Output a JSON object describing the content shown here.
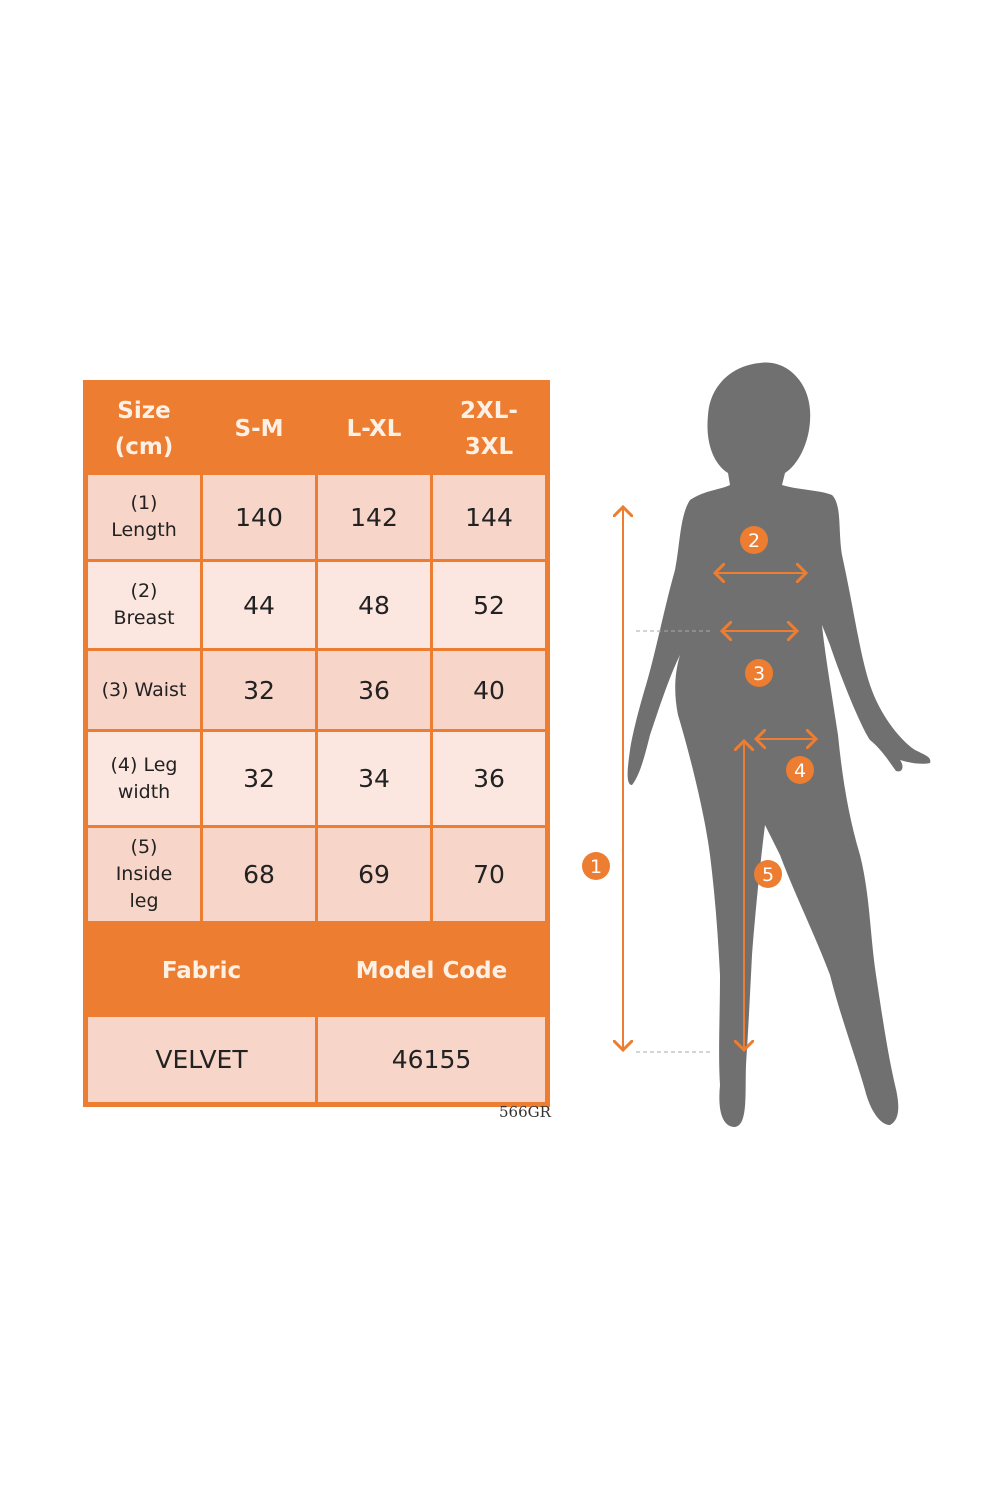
{
  "size_table": {
    "header": [
      "Size (cm)",
      "S-M",
      "L-XL",
      "2XL-3XL"
    ],
    "header_lines": [
      [
        "Size",
        "(cm)"
      ],
      [
        "S-M"
      ],
      [
        "L-XL"
      ],
      [
        "2XL-",
        "3XL"
      ]
    ],
    "rows": [
      {
        "label_lines": [
          "(1)",
          "Length"
        ],
        "values": [
          "140",
          "142",
          "144"
        ]
      },
      {
        "label_lines": [
          "(2)",
          "Breast"
        ],
        "values": [
          "44",
          "48",
          "52"
        ]
      },
      {
        "label_lines": [
          "(3) Waist"
        ],
        "values": [
          "32",
          "36",
          "40"
        ]
      },
      {
        "label_lines": [
          "(4) Leg",
          "width"
        ],
        "values": [
          "32",
          "34",
          "36"
        ]
      },
      {
        "label_lines": [
          "(5)",
          "Inside",
          "leg"
        ],
        "values": [
          "68",
          "69",
          "70"
        ]
      }
    ]
  },
  "product_info": {
    "fabric_label": "Fabric",
    "model_code_label": "Model Code",
    "fabric": "VELVET",
    "model_code": "46155"
  },
  "image_code": "566GR",
  "figure": {
    "markers": [
      "1",
      "2",
      "3",
      "4",
      "5"
    ],
    "silhouette_color": "#707070",
    "accent_color": "#ed7d31"
  }
}
